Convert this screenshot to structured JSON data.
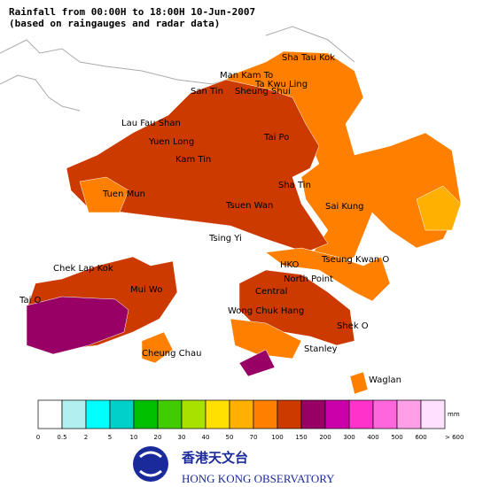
{
  "header": {
    "title": "Rainfall from 00:00H to 18:00H 10-Jun-2007",
    "subtitle": "(based on raingauges and radar data)"
  },
  "places": [
    "Sha Tau Kok",
    "Man Kam To",
    "Ta Kwu Ling",
    "San Tin",
    "Sheung Shui",
    "Lau Fau Shan",
    "Yuen Long",
    "Kam Tin",
    "Tai Po",
    "Tuen Mun",
    "Sha Tin",
    "Tsuen Wan",
    "Sai Kung",
    "Tsing Yi",
    "Chek Lap Kok",
    "HKO",
    "Tseung Kwan O",
    "Tai O",
    "Mui Wo",
    "North Point",
    "Central",
    "Wong Chuk Hang",
    "Shek O",
    "Cheung Chau",
    "Stanley",
    "Waglan"
  ],
  "legend": {
    "unit": "mm",
    "labels": [
      "0",
      "0.5",
      "2",
      "5",
      "10",
      "20",
      "30",
      "40",
      "50",
      "70",
      "100",
      "150",
      "200",
      "300",
      "400",
      "500",
      "600",
      "> 600"
    ],
    "colors": [
      "#ffffff",
      "#b0f0f0",
      "#00ffff",
      "#00d0c8",
      "#00c000",
      "#40cc00",
      "#a8e000",
      "#ffe000",
      "#ffb000",
      "#ff8000",
      "#cc3a00",
      "#990066",
      "#cc00aa",
      "#ff33cc",
      "#ff66dd",
      "#ff9fe8",
      "#ffe0ff"
    ]
  },
  "logo": {
    "chinese": "香港天文台",
    "english": "HONG KONG OBSERVATORY"
  }
}
